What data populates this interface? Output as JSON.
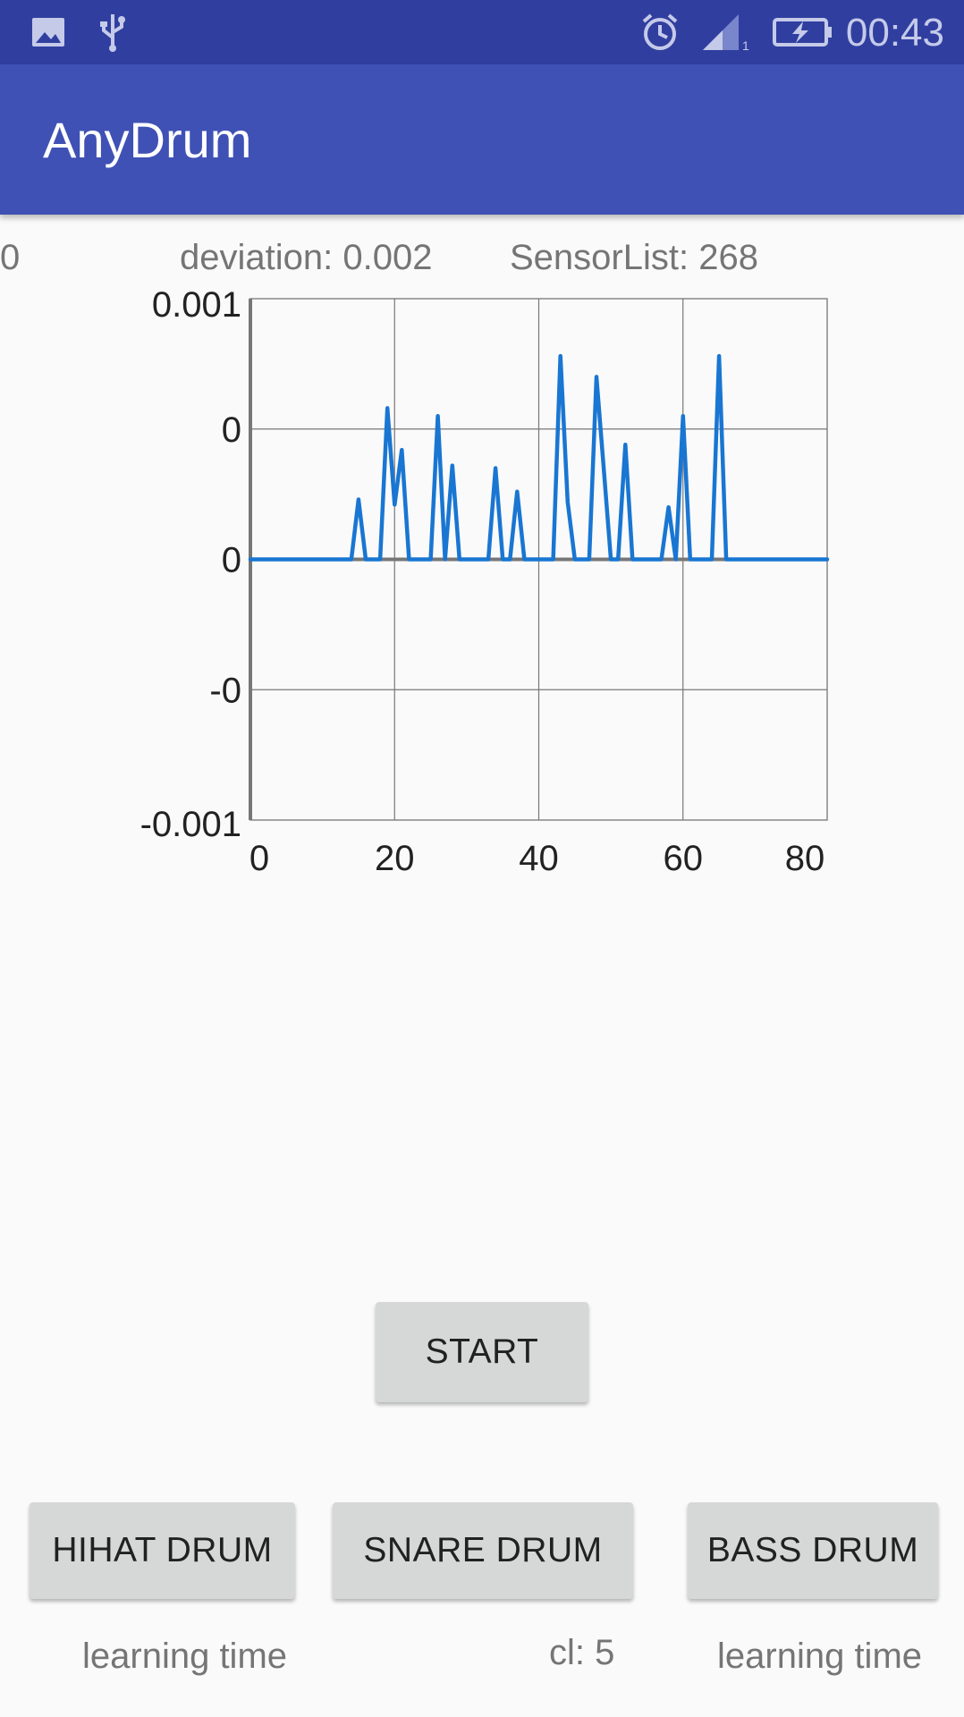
{
  "status_bar": {
    "time": "00:43",
    "icons": [
      "image-icon",
      "usb-icon",
      "alarm-icon",
      "signal-icon",
      "battery-charging-icon"
    ],
    "color": "#303f9f"
  },
  "app_bar": {
    "title": "AnyDrum",
    "color": "#3f51b5"
  },
  "info": {
    "left_value": "0",
    "deviation": "deviation: 0.002",
    "sensor_list": "SensorList: 268"
  },
  "chart_data": {
    "type": "line",
    "title": "",
    "xlabel": "",
    "ylabel": "",
    "xlim": [
      0,
      80
    ],
    "ylim": [
      -0.001,
      0.001
    ],
    "x_ticks": [
      "0",
      "20",
      "40",
      "60",
      "80"
    ],
    "y_ticks": [
      "0.001",
      "0",
      "0",
      "-0",
      "-0.001"
    ],
    "grid": true,
    "line_color": "#1976d2",
    "series": [
      {
        "x": [
          0,
          14,
          15,
          16,
          18,
          19,
          20,
          21,
          22,
          25,
          26,
          27,
          28,
          29,
          33,
          34,
          35,
          36,
          37,
          38,
          42,
          43,
          44,
          45,
          47,
          48,
          49,
          50,
          51,
          52,
          53,
          57,
          58,
          59,
          60,
          61,
          64,
          65,
          66,
          80
        ],
        "y": [
          0,
          0,
          0.00023,
          0,
          0,
          0.00058,
          0.00021,
          0.00042,
          0,
          0,
          0.00055,
          0,
          0.00036,
          0,
          0,
          0.00035,
          0,
          0,
          0.00026,
          0,
          0,
          0.00078,
          0.00022,
          0,
          0,
          0.0007,
          0.00035,
          0,
          0,
          0.00044,
          0,
          0,
          0.0002,
          0,
          0.00055,
          0,
          0,
          0.00078,
          0,
          0
        ]
      }
    ]
  },
  "controls": {
    "start_label": "START",
    "hihat_label": "HIHAT DRUM",
    "snare_label": "SNARE DRUM",
    "bass_label": "BASS DRUM"
  },
  "captions": {
    "hihat": "learning time",
    "snare": "cl: 5",
    "bass": "learning time"
  }
}
